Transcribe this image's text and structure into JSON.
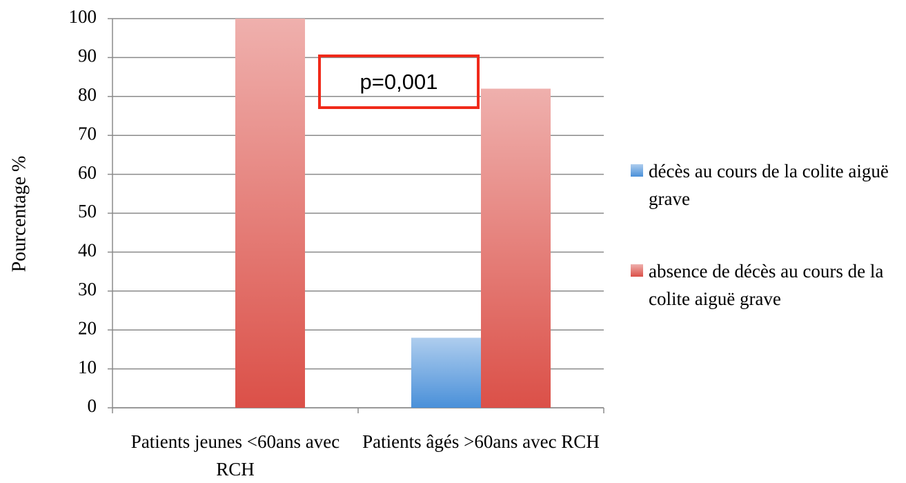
{
  "chart_data": {
    "type": "bar",
    "y_label": "Pourcentage %",
    "annotation": "p=0,001",
    "categories": [
      "Patients jeunes <60ans avec RCH",
      "Patients âgés >60ans avec RCH"
    ],
    "series": [
      {
        "name": "décès au cours de la colite aiguë grave",
        "color": "#4a90d9",
        "values": [
          0,
          18
        ]
      },
      {
        "name": "absence de décès au cours de la colite aiguë grave",
        "color": "#db5048",
        "values": [
          100,
          82
        ]
      }
    ],
    "ylim": [
      0,
      100
    ],
    "yticks": [
      0,
      10,
      20,
      30,
      40,
      50,
      60,
      70,
      80,
      90,
      100
    ],
    "grid": true,
    "legend": "right"
  }
}
